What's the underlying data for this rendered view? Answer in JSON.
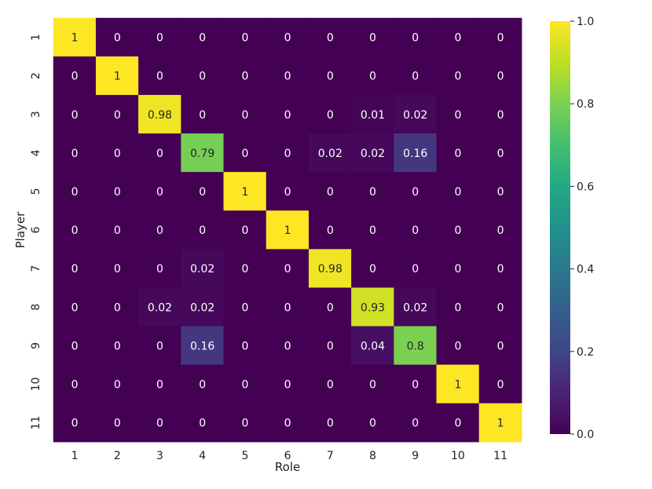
{
  "chart_data": {
    "type": "heatmap",
    "title": "",
    "xlabel": "Role",
    "ylabel": "Player",
    "x_categories": [
      "1",
      "2",
      "3",
      "4",
      "5",
      "6",
      "7",
      "8",
      "9",
      "10",
      "11"
    ],
    "y_categories": [
      "1",
      "2",
      "3",
      "4",
      "5",
      "6",
      "7",
      "8",
      "9",
      "10",
      "11"
    ],
    "values": [
      [
        1,
        0,
        0,
        0,
        0,
        0,
        0,
        0,
        0,
        0,
        0
      ],
      [
        0,
        1,
        0,
        0,
        0,
        0,
        0,
        0,
        0,
        0,
        0
      ],
      [
        0,
        0,
        0.98,
        0,
        0,
        0,
        0,
        0.01,
        0.02,
        0,
        0
      ],
      [
        0,
        0,
        0,
        0.79,
        0,
        0,
        0.02,
        0.02,
        0.16,
        0,
        0
      ],
      [
        0,
        0,
        0,
        0,
        1,
        0,
        0,
        0,
        0,
        0,
        0
      ],
      [
        0,
        0,
        0,
        0,
        0,
        1,
        0,
        0,
        0,
        0,
        0
      ],
      [
        0,
        0,
        0,
        0.02,
        0,
        0,
        0.98,
        0,
        0,
        0,
        0
      ],
      [
        0,
        0,
        0.02,
        0.02,
        0,
        0,
        0,
        0.93,
        0.02,
        0,
        0
      ],
      [
        0,
        0,
        0,
        0.16,
        0,
        0,
        0,
        0.04,
        0.8,
        0,
        0
      ],
      [
        0,
        0,
        0,
        0,
        0,
        0,
        0,
        0,
        0,
        1,
        0
      ],
      [
        0,
        0,
        0,
        0,
        0,
        0,
        0,
        0,
        0,
        0,
        1
      ]
    ],
    "colormap": "viridis",
    "vmin": 0,
    "vmax": 1,
    "colorbar_ticks": [
      "0.0",
      "0.2",
      "0.4",
      "0.6",
      "0.8",
      "1.0"
    ],
    "colorbar_tick_values": [
      0,
      0.2,
      0.4,
      0.6,
      0.8,
      1.0
    ]
  }
}
